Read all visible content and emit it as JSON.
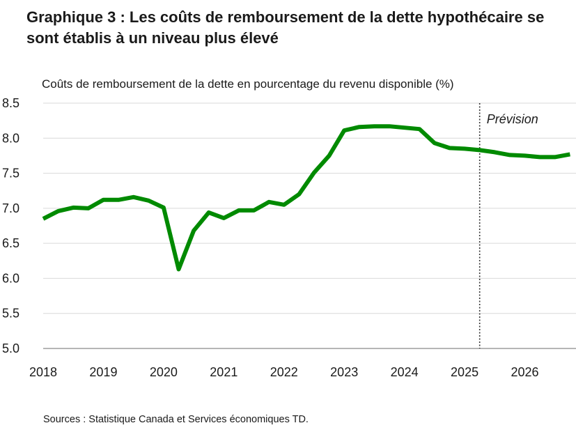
{
  "chart_data": {
    "type": "line",
    "title": "Graphique 3 : Les coûts de remboursement de la dette hypothécaire se sont établis à un niveau plus élevé",
    "ylabel": "Coûts de remboursement de la dette en pourcentage du revenu disponible (%)",
    "xlabel": "",
    "source": "Sources : Statistique Canada et Services économiques TD.",
    "ylim": [
      5.0,
      8.5
    ],
    "yticks": [
      "5.0",
      "5.5",
      "6.0",
      "6.5",
      "7.0",
      "7.5",
      "8.0",
      "8.5"
    ],
    "xticks": [
      "2018",
      "2019",
      "2020",
      "2021",
      "2022",
      "2023",
      "2024",
      "2025",
      "2026"
    ],
    "grid": true,
    "forecast_start": 2025.25,
    "forecast_label": "Prévision",
    "series": [
      {
        "name": "Coûts de remboursement de la dette hypothécaire",
        "color": "#008a00",
        "x": [
          2018.0,
          2018.25,
          2018.5,
          2018.75,
          2019.0,
          2019.25,
          2019.5,
          2019.75,
          2020.0,
          2020.25,
          2020.5,
          2020.75,
          2021.0,
          2021.25,
          2021.5,
          2021.75,
          2022.0,
          2022.25,
          2022.5,
          2022.75,
          2023.0,
          2023.25,
          2023.5,
          2023.75,
          2024.0,
          2024.25,
          2024.5,
          2024.75,
          2025.0,
          2025.25,
          2025.5,
          2025.75,
          2026.0,
          2026.25,
          2026.5,
          2026.75
        ],
        "values": [
          6.85,
          6.96,
          7.01,
          7.0,
          7.12,
          7.12,
          7.16,
          7.11,
          7.01,
          6.13,
          6.68,
          6.94,
          6.86,
          6.97,
          6.97,
          7.09,
          7.05,
          7.2,
          7.51,
          7.75,
          8.11,
          8.16,
          8.17,
          8.17,
          8.15,
          8.13,
          7.93,
          7.86,
          7.85,
          7.83,
          7.8,
          7.76,
          7.75,
          7.73,
          7.73,
          7.77
        ]
      }
    ]
  }
}
